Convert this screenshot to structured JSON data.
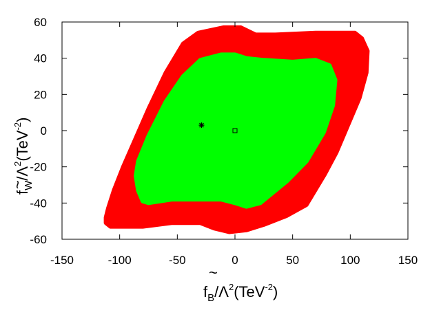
{
  "chart_data": {
    "type": "area",
    "title": "",
    "xlabel": {
      "main": "f",
      "sub": "B",
      "slash": "/Λ",
      "exp": "2",
      "unit_open": "(TeV",
      "unit_exp": "-2",
      "unit_close": ")"
    },
    "ylabel": {
      "main": "f",
      "sub": "W",
      "slash": "/Λ",
      "exp": "2",
      "unit_open": "(TeV",
      "unit_exp": "-2",
      "unit_close": ")"
    },
    "xlim": [
      -150,
      150
    ],
    "ylim": [
      -60,
      60
    ],
    "xticks": [
      -150,
      -100,
      -50,
      0,
      50,
      100,
      150
    ],
    "yticks": [
      -60,
      -40,
      -20,
      0,
      20,
      40,
      60
    ],
    "grid": false,
    "legend": "none",
    "regions": [
      {
        "color": "#ff0000",
        "polygon": [
          [
            -112,
            -48
          ],
          [
            -110,
            -43
          ],
          [
            -105,
            -33
          ],
          [
            -97,
            -20
          ],
          [
            -88,
            -7
          ],
          [
            -75,
            12
          ],
          [
            -60,
            32
          ],
          [
            -45,
            48
          ],
          [
            -32,
            54
          ],
          [
            -10,
            57
          ],
          [
            5,
            57
          ],
          [
            18,
            53
          ],
          [
            35,
            53
          ],
          [
            70,
            54
          ],
          [
            104,
            54
          ],
          [
            110,
            51
          ],
          [
            115,
            44
          ],
          [
            114,
            32
          ],
          [
            108,
            18
          ],
          [
            98,
            3
          ],
          [
            88,
            -12
          ],
          [
            78,
            -24
          ],
          [
            62,
            -41
          ],
          [
            45,
            -47
          ],
          [
            25,
            -52
          ],
          [
            10,
            -55
          ],
          [
            -5,
            -56
          ],
          [
            -18,
            -54
          ],
          [
            -30,
            -51
          ],
          [
            -55,
            -51
          ],
          [
            -80,
            -53
          ],
          [
            -108,
            -53
          ],
          [
            -112,
            -51
          ]
        ]
      },
      {
        "color": "#00ff00",
        "polygon": [
          [
            -80,
            -39
          ],
          [
            -84,
            -33
          ],
          [
            -86,
            -25
          ],
          [
            -84,
            -17
          ],
          [
            -75,
            -3
          ],
          [
            -60,
            16
          ],
          [
            -45,
            30
          ],
          [
            -30,
            39
          ],
          [
            -12,
            42
          ],
          [
            0,
            42
          ],
          [
            10,
            40
          ],
          [
            25,
            39
          ],
          [
            50,
            38
          ],
          [
            70,
            39
          ],
          [
            82,
            36
          ],
          [
            87,
            28
          ],
          [
            85,
            14
          ],
          [
            77,
            -1
          ],
          [
            62,
            -17
          ],
          [
            45,
            -28
          ],
          [
            22,
            -40
          ],
          [
            10,
            -42
          ],
          [
            0,
            -40
          ],
          [
            -12,
            -38
          ],
          [
            -30,
            -38
          ],
          [
            -55,
            -38
          ],
          [
            -75,
            -40
          ]
        ]
      }
    ],
    "markers": [
      {
        "shape": "star",
        "x": -29,
        "y": 3
      },
      {
        "shape": "square",
        "x": 0,
        "y": 0
      }
    ]
  }
}
